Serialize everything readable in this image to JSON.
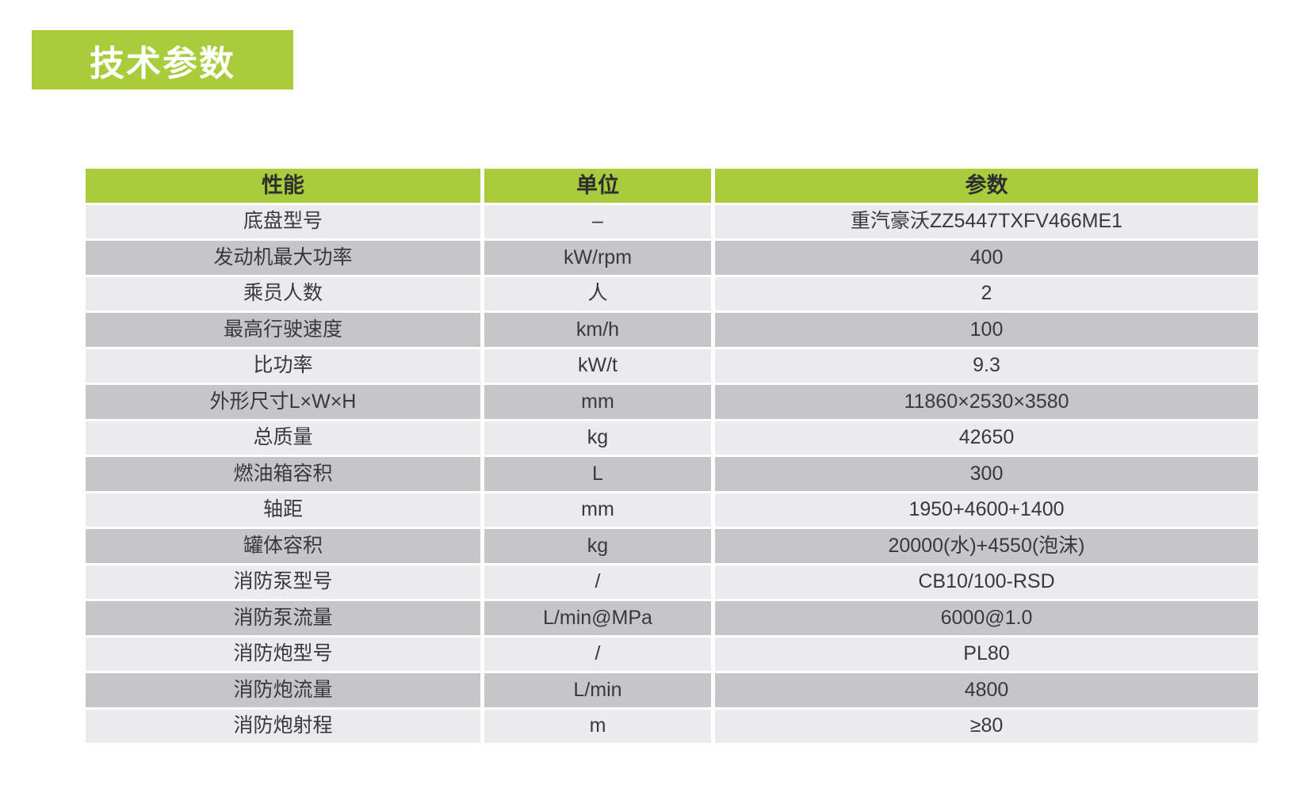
{
  "banner": {
    "title": "技术参数"
  },
  "colors": {
    "accent_green": "#a8cc3c",
    "row_light": "#ebebed",
    "row_dark": "#c6c6c8",
    "text_dark": "#39393d"
  },
  "table": {
    "columns": [
      "性能",
      "单位",
      "参数"
    ],
    "rows": [
      [
        "底盘型号",
        "–",
        "重汽豪沃ZZ5447TXFV466ME1"
      ],
      [
        "发动机最大功率",
        "kW/rpm",
        "400"
      ],
      [
        "乘员人数",
        "人",
        "2"
      ],
      [
        "最高行驶速度",
        "km/h",
        "100"
      ],
      [
        "比功率",
        "kW/t",
        "9.3"
      ],
      [
        "外形尺寸L×W×H",
        "mm",
        "11860×2530×3580"
      ],
      [
        "总质量",
        "kg",
        "42650"
      ],
      [
        "燃油箱容积",
        "L",
        "300"
      ],
      [
        "轴距",
        "mm",
        "1950+4600+1400"
      ],
      [
        "罐体容积",
        "kg",
        "20000(水)+4550(泡沫)"
      ],
      [
        "消防泵型号",
        "/",
        "CB10/100-RSD"
      ],
      [
        "消防泵流量",
        "L/min@MPa",
        "6000@1.0"
      ],
      [
        "消防炮型号",
        "/",
        "PL80"
      ],
      [
        "消防炮流量",
        "L/min",
        "4800"
      ],
      [
        "消防炮射程",
        "m",
        "≥80"
      ]
    ]
  }
}
